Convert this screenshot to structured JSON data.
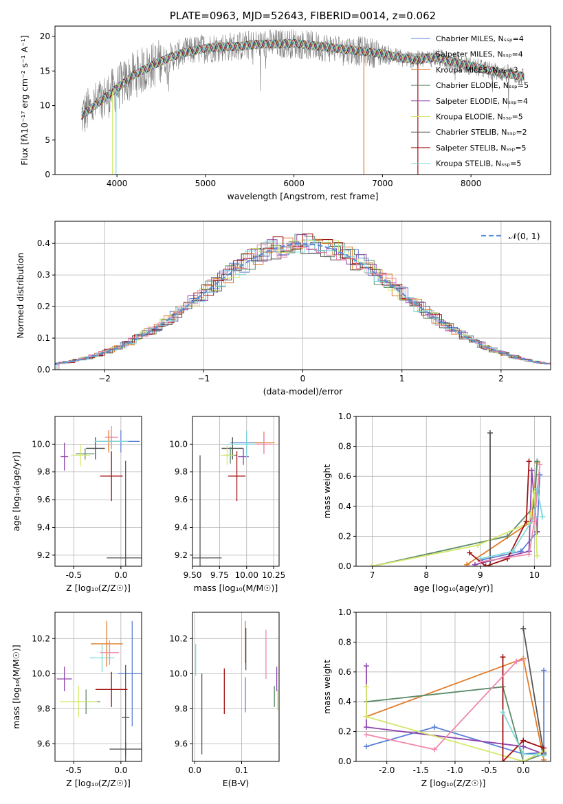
{
  "colors": {
    "chab_miles": "#5b7fd6",
    "salp_miles": "#4a4a4a",
    "krou_miles": "#e07b27",
    "chab_elodie": "#5a8a68",
    "salp_elodie": "#8e44ad",
    "krou_elodie": "#d4e86a",
    "chab_stelib": "#555555",
    "salp_stelib": "#a01010",
    "krou_stelib": "#7fd8d8",
    "pink": "#ee88aa",
    "normal": "#5b8fd6"
  },
  "chart_data": [
    {
      "id": "spectrum",
      "type": "line",
      "title": "PLATE=0963, MJD=52643, FIBERID=0014, z=0.062",
      "xlabel": "wavelength [Angstrom, rest frame]",
      "ylabel": "Flux [fλ10⁻¹⁷ erg cm⁻² s⁻¹ A⁻¹]",
      "xlim": [
        3300,
        8900
      ],
      "ylim": [
        0,
        21.5
      ],
      "xticks": [
        4000,
        5000,
        6000,
        7000,
        8000
      ],
      "yticks": [
        0,
        5,
        10,
        15,
        20
      ],
      "legend": "upper right",
      "series": [
        {
          "name": "Chabrier MILES, N_SSP=4",
          "key": "chab_miles"
        },
        {
          "name": "Salpeter MILES, N_SSP=4",
          "key": "salp_miles"
        },
        {
          "name": "Kroupa MILES, N_SSP=3",
          "key": "krou_miles"
        },
        {
          "name": "Chabrier ELODIE, N_SSP=5",
          "key": "chab_elodie"
        },
        {
          "name": "Salpeter ELODIE, N_SSP=4",
          "key": "salp_elodie"
        },
        {
          "name": "Kroupa ELODIE, N_SSP=5",
          "key": "krou_elodie"
        },
        {
          "name": "Chabrier STELIB, N_SSP=2",
          "key": "chab_stelib"
        },
        {
          "name": "Salpeter STELIB, N_SSP=5",
          "key": "salp_stelib"
        },
        {
          "name": "Kroupa STELIB, N_SSP=5",
          "key": "krou_stelib"
        }
      ],
      "continuum": {
        "x": [
          3600,
          3800,
          4000,
          4200,
          4400,
          4600,
          4800,
          5000,
          5200,
          5400,
          5600,
          5800,
          6000,
          6200,
          6400,
          6600,
          6800,
          7000,
          7200,
          7400,
          7600,
          7800,
          8000,
          8200,
          8400,
          8600
        ],
        "y": [
          8.5,
          10.5,
          12.5,
          14.5,
          15.8,
          17.0,
          17.8,
          18.3,
          18.5,
          18.6,
          18.9,
          18.9,
          19.0,
          18.7,
          18.4,
          18.1,
          17.8,
          17.5,
          16.9,
          16.6,
          17.0,
          16.3,
          15.7,
          15.1,
          14.6,
          14.2
        ]
      }
    },
    {
      "id": "residuals",
      "type": "histogram",
      "xlabel": "(data-model)/error",
      "ylabel": "Normed distribution",
      "xlim": [
        -2.5,
        2.5
      ],
      "ylim": [
        0,
        0.47
      ],
      "xticks": [
        -2,
        -1,
        0,
        1,
        2
      ],
      "yticks": [
        0.0,
        0.1,
        0.2,
        0.3,
        0.4
      ],
      "legend": "upper right",
      "legend_label": "𝒩(0, 1)",
      "bin_width": 0.1,
      "bin_start": -2.5
    },
    {
      "id": "age_vs_Z",
      "type": "errorbar",
      "xlabel": "Z [log₁₀(Z/Z☉)]",
      "ylabel": "age  [log₁₀(age/yr)]",
      "xlim": [
        -0.7,
        0.22
      ],
      "ylim": [
        9.12,
        10.2
      ],
      "xticks": [
        -0.5,
        0.0
      ],
      "yticks": [
        9.2,
        9.4,
        9.6,
        9.8,
        10.0
      ],
      "points": [
        {
          "key": "chab_miles",
          "x": 0.0,
          "xerr": 0.2,
          "y": 10.02,
          "yerr": 0.08
        },
        {
          "key": "salp_miles",
          "x": -0.27,
          "xerr": 0.1,
          "y": 9.97,
          "yerr": 0.08
        },
        {
          "key": "krou_miles",
          "x": -0.13,
          "xerr": 0.12,
          "y": 10.02,
          "yerr": 0.08
        },
        {
          "key": "chab_elodie",
          "x": -0.38,
          "xerr": 0.1,
          "y": 9.93,
          "yerr": 0.04
        },
        {
          "key": "salp_elodie",
          "x": -0.6,
          "xerr": 0.04,
          "y": 9.91,
          "yerr": 0.1
        },
        {
          "key": "krou_elodie",
          "x": -0.43,
          "xerr": 0.1,
          "y": 9.92,
          "yerr": 0.08
        },
        {
          "key": "chab_stelib",
          "x": 0.05,
          "xerr": 0.2,
          "y": 9.18,
          "yerr": 0.7
        },
        {
          "key": "salp_stelib",
          "x": -0.1,
          "xerr": 0.12,
          "y": 9.77,
          "yerr": 0.18
        },
        {
          "key": "krou_stelib",
          "x": -0.1,
          "xerr": 0.18,
          "y": 10.02,
          "yerr": 0.06
        },
        {
          "key": "pink",
          "x": -0.1,
          "xerr": 0.07,
          "y": 10.05,
          "yerr": 0.08
        }
      ]
    },
    {
      "id": "age_vs_mass",
      "type": "errorbar",
      "xlabel": "mass [log₁₀(M/M☉)]",
      "xlim": [
        9.5,
        10.3
      ],
      "ylim": [
        9.12,
        10.2
      ],
      "xticks": [
        9.5,
        9.75,
        10.0,
        10.25
      ],
      "xticklabels": [
        "9.50",
        "9.75",
        "10.00",
        "10.25"
      ],
      "yticks": [
        9.2,
        9.4,
        9.6,
        9.8,
        10.0
      ],
      "points": [
        {
          "key": "chab_miles",
          "x": 10.0,
          "xerr": 0.15,
          "y": 10.01,
          "yerr": 0.08
        },
        {
          "key": "salp_miles",
          "x": 9.87,
          "xerr": 0.1,
          "y": 9.97,
          "yerr": 0.08
        },
        {
          "key": "krou_miles",
          "x": 10.16,
          "xerr": 0.1,
          "y": 10.01,
          "yerr": 0.08
        },
        {
          "key": "chab_elodie",
          "x": 9.85,
          "xerr": 0.06,
          "y": 9.92,
          "yerr": 0.06
        },
        {
          "key": "salp_elodie",
          "x": 9.97,
          "xerr": 0.05,
          "y": 9.91,
          "yerr": 0.06
        },
        {
          "key": "krou_elodie",
          "x": 9.82,
          "xerr": 0.06,
          "y": 9.92,
          "yerr": 0.07
        },
        {
          "key": "chab_stelib",
          "x": 9.57,
          "xerr": 0.2,
          "y": 9.18,
          "yerr": 0.74
        },
        {
          "key": "salp_stelib",
          "x": 9.91,
          "xerr": 0.08,
          "y": 9.77,
          "yerr": 0.18
        },
        {
          "key": "krou_stelib",
          "x": 10.0,
          "xerr": 0.17,
          "y": 10.0,
          "yerr": 0.1
        },
        {
          "key": "pink",
          "x": 10.16,
          "xerr": 0.08,
          "y": 10.0,
          "yerr": 0.07
        }
      ]
    },
    {
      "id": "weight_vs_age",
      "type": "line",
      "xlabel": "age  [log₁₀(age/yr)]",
      "ylabel": "mass weight",
      "xlim": [
        6.7,
        10.3
      ],
      "ylim": [
        0,
        1.0
      ],
      "xticks": [
        7,
        8,
        9,
        10
      ],
      "yticks": [
        0.0,
        0.2,
        0.4,
        0.6,
        0.8,
        1.0
      ],
      "series": [
        {
          "key": "chab_miles",
          "x": [
            9.0,
            9.75,
            10.05,
            10.1
          ],
          "y": [
            0.04,
            0.1,
            0.23,
            0.61
          ]
        },
        {
          "key": "krou_miles",
          "x": [
            8.75,
            9.95,
            10.05
          ],
          "y": [
            0.01,
            0.3,
            0.69
          ]
        },
        {
          "key": "chab_elodie",
          "x": [
            7.0,
            9.5,
            10.0,
            10.05
          ],
          "y": [
            0.0,
            0.2,
            0.4,
            0.7
          ]
        },
        {
          "key": "salp_elodie",
          "x": [
            8.9,
            9.9,
            9.95,
            10.05
          ],
          "y": [
            0.01,
            0.1,
            0.64,
            0.23
          ]
        },
        {
          "key": "krou_elodie",
          "x": [
            7.0,
            8.95,
            9.9,
            10.0,
            10.05
          ],
          "y": [
            0.0,
            0.14,
            0.29,
            0.5,
            0.07
          ]
        },
        {
          "key": "chab_stelib",
          "x": [
            9.18,
            9.18
          ],
          "y": [
            0.0,
            0.89
          ]
        },
        {
          "key": "salp_stelib",
          "x": [
            8.8,
            9.1,
            9.5,
            9.85,
            9.9
          ],
          "y": [
            0.09,
            0.0,
            0.05,
            0.3,
            0.7
          ]
        },
        {
          "key": "krou_stelib",
          "x": [
            9.0,
            9.6,
            10.0,
            10.05,
            10.15
          ],
          "y": [
            0.05,
            0.1,
            0.33,
            0.52,
            0.33
          ]
        },
        {
          "key": "pink",
          "x": [
            9.0,
            9.9,
            10.0,
            10.1
          ],
          "y": [
            0.03,
            0.08,
            0.3,
            0.68
          ]
        }
      ]
    },
    {
      "id": "mass_vs_Z",
      "type": "errorbar",
      "xlabel": "Z [log₁₀(Z/Z☉)]",
      "ylabel": "mass [log₁₀(M/M☉)]",
      "xlim": [
        -0.7,
        0.22
      ],
      "ylim": [
        9.5,
        10.35
      ],
      "xticks": [
        -0.5,
        0.0
      ],
      "yticks": [
        9.6,
        9.8,
        10.0,
        10.2
      ],
      "points": [
        {
          "key": "chab_miles",
          "x": 0.12,
          "xerr": 0.15,
          "y": 10.0,
          "yerr": 0.3
        },
        {
          "key": "salp_miles",
          "x": 0.05,
          "xerr": 0.17,
          "y": 9.57,
          "yerr": 0.04
        },
        {
          "key": "krou_miles",
          "x": -0.15,
          "xerr": 0.17,
          "y": 10.17,
          "yerr": 0.13
        },
        {
          "key": "chab_elodie",
          "x": -0.37,
          "xerr": 0.15,
          "y": 9.84,
          "yerr": 0.07
        },
        {
          "key": "salp_elodie",
          "x": -0.6,
          "xerr": 0.08,
          "y": 9.97,
          "yerr": 0.07
        },
        {
          "key": "krou_elodie",
          "x": -0.45,
          "xerr": 0.2,
          "y": 9.84,
          "yerr": 0.09
        },
        {
          "key": "chab_stelib",
          "x": 0.05,
          "xerr": 0.04,
          "y": 9.75,
          "yerr": 0.3
        },
        {
          "key": "salp_stelib",
          "x": -0.1,
          "xerr": 0.17,
          "y": 9.91,
          "yerr": 0.1
        },
        {
          "key": "krou_stelib",
          "x": -0.2,
          "xerr": 0.13,
          "y": 10.09,
          "yerr": 0.08
        },
        {
          "key": "pink",
          "x": -0.12,
          "xerr": 0.1,
          "y": 10.12,
          "yerr": 0.07
        }
      ]
    },
    {
      "id": "mass_vs_EBV",
      "type": "errorbar",
      "xlabel": "E(B-V)",
      "xlim": [
        -0.005,
        0.18
      ],
      "ylim": [
        9.5,
        10.35
      ],
      "xticks": [
        0.0,
        0.1
      ],
      "yticks": [
        9.6,
        9.8,
        10.0,
        10.2
      ],
      "points": [
        {
          "key": "chab_miles",
          "x": 0.108,
          "yerr": 0.1,
          "y": 9.88
        },
        {
          "key": "krou_miles",
          "x": 0.108,
          "yerr": 0.12,
          "y": 10.18
        },
        {
          "key": "salp_miles",
          "x": 0.109,
          "yerr": 0.12,
          "y": 10.14
        },
        {
          "key": "chab_elodie",
          "x": 0.17,
          "yerr": 0.06,
          "y": 9.87
        },
        {
          "key": "salp_elodie",
          "x": 0.175,
          "yerr": 0.07,
          "y": 9.97
        },
        {
          "key": "krou_elodie",
          "x": 0.177,
          "yerr": 0.06,
          "y": 9.85
        },
        {
          "key": "chab_stelib",
          "x": 0.015,
          "yerr": 0.23,
          "y": 9.77
        },
        {
          "key": "salp_stelib",
          "x": 0.063,
          "yerr": 0.13,
          "y": 9.9
        },
        {
          "key": "krou_stelib",
          "x": 0.002,
          "yerr": 0.09,
          "y": 10.08
        },
        {
          "key": "pink",
          "x": 0.152,
          "yerr": 0.14,
          "y": 10.11
        }
      ]
    },
    {
      "id": "weight_vs_Z",
      "type": "line",
      "xlabel": "Z [log₁₀(Z/Z☉)]",
      "ylabel": "mass weight",
      "xlim": [
        -2.45,
        0.4
      ],
      "ylim": [
        0,
        1.0
      ],
      "xticks": [
        -2.0,
        -1.5,
        -1.0,
        -0.5,
        0.0
      ],
      "yticks": [
        0.0,
        0.2,
        0.4,
        0.6,
        0.8,
        1.0
      ],
      "series": [
        {
          "key": "chab_miles",
          "x": [
            -2.3,
            -1.3,
            0.0,
            0.3,
            0.3
          ],
          "y": [
            0.1,
            0.23,
            0.05,
            0.06,
            0.61
          ]
        },
        {
          "key": "krou_miles",
          "x": [
            -2.3,
            0.0,
            0.3
          ],
          "y": [
            0.3,
            0.69,
            0.01
          ]
        },
        {
          "key": "chab_elodie",
          "x": [
            -2.3,
            -0.3,
            0.0,
            0.3
          ],
          "y": [
            0.4,
            0.5,
            0.0,
            0.05
          ]
        },
        {
          "key": "salp_elodie",
          "x": [
            -2.3,
            -2.3,
            0.0,
            0.3
          ],
          "y": [
            0.64,
            0.23,
            0.1,
            0.05
          ]
        },
        {
          "key": "krou_elodie",
          "x": [
            -2.3,
            -2.3,
            0.0,
            0.3
          ],
          "y": [
            0.5,
            0.3,
            0.0,
            0.07
          ]
        },
        {
          "key": "chab_stelib",
          "x": [
            0.0,
            0.3
          ],
          "y": [
            0.89,
            0.05
          ]
        },
        {
          "key": "salp_stelib",
          "x": [
            -0.3,
            -0.3,
            0.0,
            0.3
          ],
          "y": [
            0.7,
            0.0,
            0.14,
            0.09
          ]
        },
        {
          "key": "krou_stelib",
          "x": [
            -0.3,
            0.0,
            0.3
          ],
          "y": [
            0.33,
            0.05,
            0.04
          ]
        },
        {
          "key": "pink",
          "x": [
            -2.3,
            -1.3,
            -0.1,
            0.0
          ],
          "y": [
            0.18,
            0.08,
            0.67,
            0.68
          ]
        }
      ]
    }
  ]
}
